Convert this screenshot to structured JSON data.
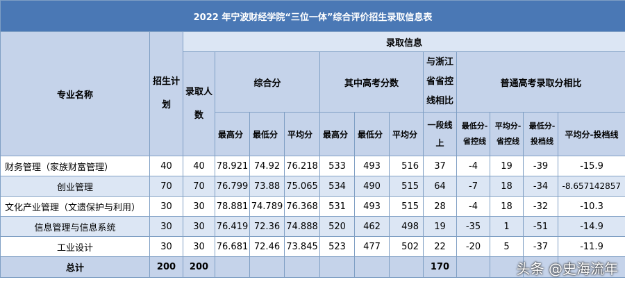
{
  "title": "2022 年宁波财经学院“三位一体”综合评价招生录取信息表",
  "header": {
    "major": "专业名称",
    "plan": "招生计划",
    "admit_info": "录取信息",
    "admit_count": "录取人数",
    "composite": "综合分",
    "gaokao": "其中高考分数",
    "prov_line": "与浙江省省控线相比",
    "compare": "普通高考录取分相比",
    "max": "最高分",
    "min": "最低分",
    "avg": "平均分",
    "gaokao_max": "最高分",
    "gaokao_min": "最低分",
    "gaokao_avg": "平均分",
    "tier": "一段线上",
    "min_minus_prov": "最低分-省控线",
    "avg_minus_prov": "平均分-省控线",
    "min_minus_toudang": "最低分-投档线",
    "avg_minus_toudang": "平均分-投档线"
  },
  "rows": [
    {
      "major": "财务管理（家族财富管理）",
      "plan": "40",
      "admit": "40",
      "c_max": "78.921",
      "c_min": "74.92",
      "c_avg": "76.218",
      "g_max": "533",
      "g_min": "493",
      "g_avg": "516",
      "tier": "37",
      "d1": "-4",
      "d2": "19",
      "d3": "-39",
      "d4": "-15.9"
    },
    {
      "major": "创业管理",
      "plan": "70",
      "admit": "70",
      "c_max": "76.799",
      "c_min": "73.88",
      "c_avg": "75.065",
      "g_max": "534",
      "g_min": "490",
      "g_avg": "515",
      "tier": "64",
      "d1": "-7",
      "d2": "18",
      "d3": "-34",
      "d4": "-8.657142857"
    },
    {
      "major": "文化产业管理（文遗保护与利用）",
      "plan": "30",
      "admit": "30",
      "c_max": "78.881",
      "c_min": "74.789",
      "c_avg": "76.368",
      "g_max": "531",
      "g_min": "493",
      "g_avg": "515",
      "tier": "28",
      "d1": "-4",
      "d2": "18",
      "d3": "-32",
      "d4": "-10.3"
    },
    {
      "major": "信息管理与信息系统",
      "plan": "30",
      "admit": "30",
      "c_max": "76.419",
      "c_min": "72.36",
      "c_avg": "74.888",
      "g_max": "520",
      "g_min": "462",
      "g_avg": "498",
      "tier": "19",
      "d1": "-35",
      "d2": "1",
      "d3": "-51",
      "d4": "-14.9"
    },
    {
      "major": "工业设计",
      "plan": "30",
      "admit": "30",
      "c_max": "76.681",
      "c_min": "72.46",
      "c_avg": "73.845",
      "g_max": "523",
      "g_min": "477",
      "g_avg": "502",
      "tier": "22",
      "d1": "-20",
      "d2": "5",
      "d3": "-37",
      "d4": "-11.9"
    }
  ],
  "total": {
    "label": "总计",
    "plan": "200",
    "admit": "200",
    "tier": "170"
  },
  "watermark": "头条 @史海流年"
}
